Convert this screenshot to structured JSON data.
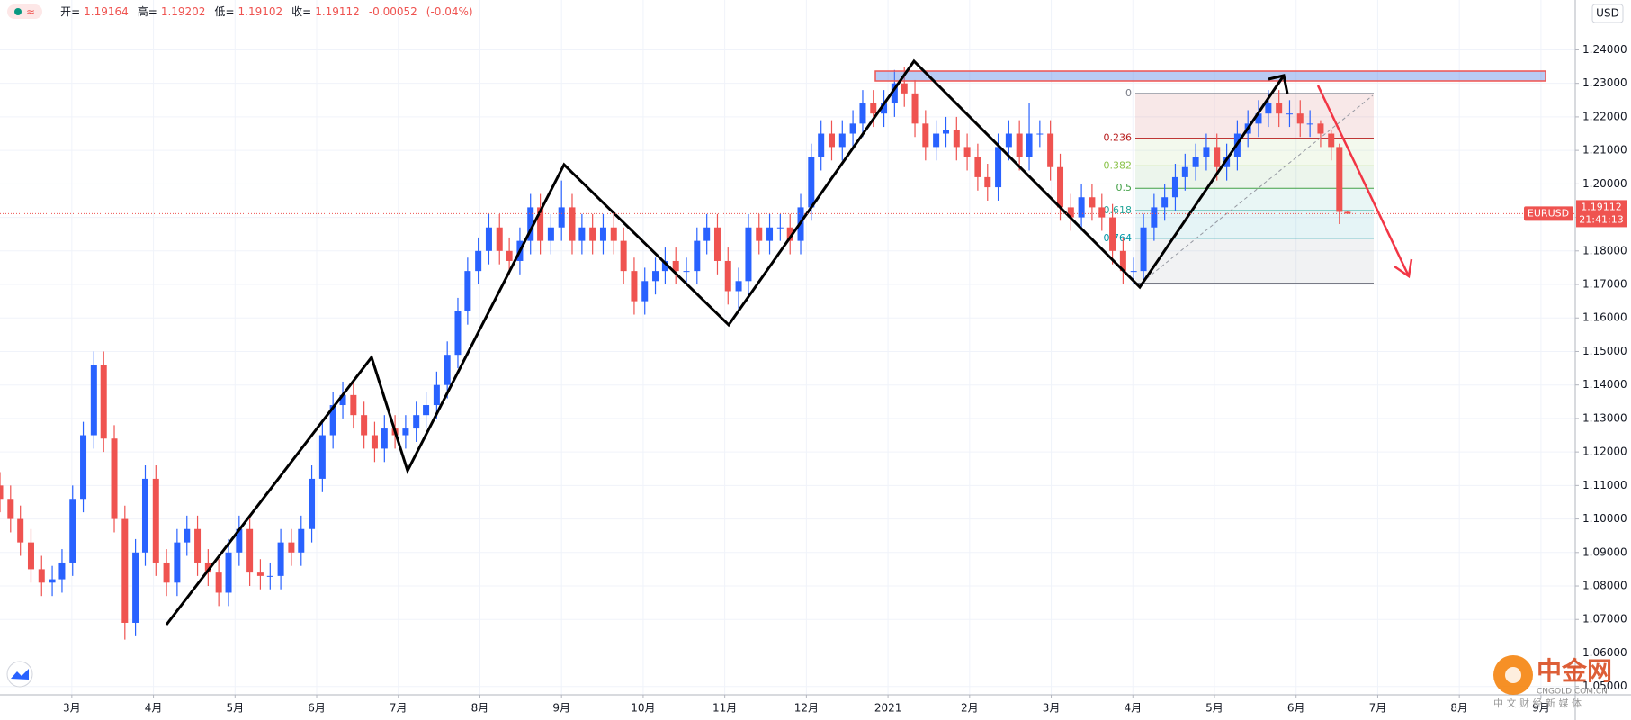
{
  "chart_data": {
    "type": "candlestick",
    "symbol": "EURUSD",
    "currency": "USD",
    "countdown": "21:41:13",
    "header": {
      "indicator": "≈",
      "open_label": "开=",
      "high_label": "高=",
      "low_label": "低=",
      "close_label": "收=",
      "change": -0.00052,
      "change_label": "(-0.04%)"
    },
    "up_color": "#2962ff",
    "down_color": "#ef5350",
    "grid": true,
    "x": [
      2.12,
      2.25,
      2.37,
      2.5,
      2.63,
      2.76,
      2.88,
      3.01,
      3.14,
      3.27,
      3.39,
      3.52,
      3.65,
      3.78,
      3.9,
      4.03,
      4.16,
      4.29,
      4.41,
      4.54,
      4.67,
      4.8,
      4.92,
      5.05,
      5.18,
      5.31,
      5.43,
      5.56,
      5.69,
      5.81,
      5.94,
      6.07,
      6.2,
      6.32,
      6.45,
      6.58,
      6.71,
      6.83,
      6.96,
      7.09,
      7.22,
      7.34,
      7.47,
      7.6,
      7.73,
      7.85,
      7.98,
      8.11,
      8.24,
      8.36,
      8.49,
      8.62,
      8.74,
      8.87,
      9.0,
      9.13,
      9.25,
      9.38,
      9.51,
      9.64,
      9.76,
      9.89,
      10.02,
      10.15,
      10.27,
      10.4,
      10.53,
      10.66,
      10.78,
      10.91,
      11.04,
      11.17,
      11.29,
      11.42,
      11.55,
      11.68,
      11.8,
      11.93,
      12.06,
      12.18,
      12.31,
      12.44,
      12.57,
      12.69,
      12.82,
      12.95,
      13.08,
      13.2,
      13.33,
      13.46,
      13.59,
      13.71,
      13.84,
      13.97,
      14.1,
      14.22,
      14.35,
      14.48,
      14.61,
      14.73,
      14.86,
      14.99,
      15.11,
      15.24,
      15.37,
      15.5,
      15.62,
      15.75,
      15.88,
      16.01,
      16.13,
      16.26,
      16.39,
      16.52,
      16.64,
      16.77,
      16.9,
      17.03,
      17.15,
      17.28,
      17.41,
      17.54,
      17.66,
      17.79,
      17.92,
      18.05,
      18.17,
      18.3,
      18.43,
      18.53,
      18.63
    ],
    "open": [
      1.11,
      1.106,
      1.1,
      1.093,
      1.085,
      1.081,
      1.082,
      1.087,
      1.106,
      1.125,
      1.146,
      1.124,
      1.1,
      1.069,
      1.09,
      1.112,
      1.087,
      1.081,
      1.093,
      1.097,
      1.087,
      1.084,
      1.078,
      1.09,
      1.097,
      1.084,
      1.083,
      1.083,
      1.093,
      1.09,
      1.097,
      1.112,
      1.125,
      1.134,
      1.137,
      1.131,
      1.125,
      1.121,
      1.127,
      1.125,
      1.127,
      1.131,
      1.134,
      1.14,
      1.149,
      1.162,
      1.174,
      1.18,
      1.187,
      1.18,
      1.177,
      1.183,
      1.193,
      1.183,
      1.187,
      1.193,
      1.183,
      1.187,
      1.183,
      1.187,
      1.183,
      1.174,
      1.165,
      1.171,
      1.174,
      1.177,
      1.174,
      1.174,
      1.183,
      1.187,
      1.177,
      1.168,
      1.171,
      1.187,
      1.183,
      1.187,
      1.187,
      1.183,
      1.193,
      1.208,
      1.215,
      1.211,
      1.215,
      1.218,
      1.224,
      1.221,
      1.224,
      1.23,
      1.227,
      1.218,
      1.211,
      1.215,
      1.216,
      1.211,
      1.208,
      1.202,
      1.199,
      1.211,
      1.215,
      1.208,
      1.215,
      1.215,
      1.205,
      1.193,
      1.19,
      1.196,
      1.193,
      1.19,
      1.18,
      1.174,
      1.174,
      1.187,
      1.193,
      1.196,
      1.202,
      1.205,
      1.208,
      1.211,
      1.205,
      1.208,
      1.215,
      1.218,
      1.221,
      1.224,
      1.221,
      1.221,
      1.218,
      1.218,
      1.215,
      1.211,
      1.19164
    ],
    "high": [
      1.114,
      1.11,
      1.104,
      1.097,
      1.089,
      1.086,
      1.091,
      1.11,
      1.129,
      1.15,
      1.15,
      1.128,
      1.104,
      1.094,
      1.116,
      1.116,
      1.091,
      1.097,
      1.101,
      1.101,
      1.091,
      1.088,
      1.094,
      1.101,
      1.101,
      1.088,
      1.087,
      1.097,
      1.097,
      1.101,
      1.116,
      1.129,
      1.138,
      1.141,
      1.141,
      1.135,
      1.129,
      1.131,
      1.131,
      1.131,
      1.135,
      1.138,
      1.144,
      1.153,
      1.166,
      1.178,
      1.184,
      1.191,
      1.191,
      1.184,
      1.187,
      1.197,
      1.197,
      1.191,
      1.201,
      1.197,
      1.191,
      1.191,
      1.191,
      1.191,
      1.187,
      1.178,
      1.175,
      1.178,
      1.181,
      1.181,
      1.178,
      1.187,
      1.191,
      1.191,
      1.181,
      1.175,
      1.191,
      1.191,
      1.191,
      1.191,
      1.191,
      1.197,
      1.212,
      1.219,
      1.219,
      1.219,
      1.222,
      1.228,
      1.228,
      1.228,
      1.234,
      1.235,
      1.231,
      1.222,
      1.219,
      1.22,
      1.22,
      1.215,
      1.212,
      1.206,
      1.215,
      1.219,
      1.219,
      1.224,
      1.219,
      1.219,
      1.209,
      1.197,
      1.2,
      1.2,
      1.197,
      1.194,
      1.184,
      1.178,
      1.191,
      1.197,
      1.2,
      1.206,
      1.209,
      1.212,
      1.215,
      1.215,
      1.212,
      1.219,
      1.222,
      1.225,
      1.228,
      1.228,
      1.225,
      1.225,
      1.222,
      1.219,
      1.216,
      1.212,
      1.19202
    ],
    "low": [
      1.102,
      1.096,
      1.089,
      1.081,
      1.077,
      1.077,
      1.078,
      1.083,
      1.102,
      1.121,
      1.12,
      1.096,
      1.064,
      1.065,
      1.086,
      1.083,
      1.077,
      1.077,
      1.089,
      1.083,
      1.08,
      1.074,
      1.074,
      1.086,
      1.08,
      1.079,
      1.079,
      1.079,
      1.086,
      1.086,
      1.093,
      1.108,
      1.121,
      1.13,
      1.127,
      1.121,
      1.117,
      1.117,
      1.121,
      1.121,
      1.123,
      1.127,
      1.13,
      1.136,
      1.145,
      1.158,
      1.17,
      1.176,
      1.176,
      1.173,
      1.173,
      1.179,
      1.179,
      1.179,
      1.183,
      1.179,
      1.179,
      1.179,
      1.179,
      1.179,
      1.17,
      1.161,
      1.161,
      1.167,
      1.17,
      1.17,
      1.17,
      1.17,
      1.179,
      1.173,
      1.164,
      1.162,
      1.167,
      1.179,
      1.179,
      1.183,
      1.179,
      1.179,
      1.189,
      1.204,
      1.207,
      1.207,
      1.211,
      1.214,
      1.217,
      1.217,
      1.22,
      1.223,
      1.214,
      1.207,
      1.207,
      1.211,
      1.207,
      1.204,
      1.198,
      1.195,
      1.195,
      1.207,
      1.204,
      1.204,
      1.211,
      1.201,
      1.189,
      1.186,
      1.186,
      1.189,
      1.186,
      1.176,
      1.17,
      1.17,
      1.17,
      1.183,
      1.189,
      1.192,
      1.198,
      1.201,
      1.204,
      1.201,
      1.201,
      1.204,
      1.211,
      1.214,
      1.217,
      1.217,
      1.217,
      1.214,
      1.214,
      1.211,
      1.207,
      1.188,
      1.19102
    ],
    "close": [
      1.106,
      1.1,
      1.093,
      1.085,
      1.081,
      1.082,
      1.087,
      1.106,
      1.125,
      1.146,
      1.124,
      1.1,
      1.069,
      1.09,
      1.112,
      1.087,
      1.081,
      1.093,
      1.097,
      1.087,
      1.084,
      1.078,
      1.09,
      1.097,
      1.084,
      1.083,
      1.083,
      1.093,
      1.09,
      1.097,
      1.112,
      1.125,
      1.134,
      1.137,
      1.131,
      1.125,
      1.121,
      1.127,
      1.125,
      1.127,
      1.131,
      1.134,
      1.14,
      1.149,
      1.162,
      1.174,
      1.18,
      1.187,
      1.18,
      1.177,
      1.183,
      1.193,
      1.183,
      1.187,
      1.193,
      1.183,
      1.187,
      1.183,
      1.187,
      1.183,
      1.174,
      1.165,
      1.171,
      1.174,
      1.177,
      1.174,
      1.174,
      1.183,
      1.187,
      1.177,
      1.168,
      1.171,
      1.187,
      1.183,
      1.187,
      1.187,
      1.183,
      1.193,
      1.208,
      1.215,
      1.211,
      1.215,
      1.218,
      1.224,
      1.221,
      1.224,
      1.23,
      1.227,
      1.218,
      1.211,
      1.215,
      1.216,
      1.211,
      1.208,
      1.202,
      1.199,
      1.211,
      1.215,
      1.208,
      1.215,
      1.215,
      1.205,
      1.193,
      1.19,
      1.196,
      1.193,
      1.19,
      1.18,
      1.174,
      1.174,
      1.187,
      1.193,
      1.196,
      1.202,
      1.205,
      1.208,
      1.211,
      1.205,
      1.208,
      1.215,
      1.218,
      1.221,
      1.224,
      1.221,
      1.221,
      1.218,
      1.218,
      1.215,
      1.211,
      1.19164,
      1.19112
    ],
    "xlim": [
      2.12,
      21.42
    ],
    "xticks": [
      {
        "value": 3,
        "label": "3月"
      },
      {
        "value": 4,
        "label": "4月"
      },
      {
        "value": 5,
        "label": "5月"
      },
      {
        "value": 6,
        "label": "6月"
      },
      {
        "value": 7,
        "label": "7月"
      },
      {
        "value": 8,
        "label": "8月"
      },
      {
        "value": 9,
        "label": "9月"
      },
      {
        "value": 10,
        "label": "10月"
      },
      {
        "value": 11,
        "label": "11月"
      },
      {
        "value": 12,
        "label": "12月"
      },
      {
        "value": 13,
        "label": "2021"
      },
      {
        "value": 14,
        "label": "2月"
      },
      {
        "value": 15,
        "label": "3月"
      },
      {
        "value": 16,
        "label": "4月"
      },
      {
        "value": 17,
        "label": "5月"
      },
      {
        "value": 18,
        "label": "6月"
      },
      {
        "value": 19,
        "label": "7月"
      },
      {
        "value": 20,
        "label": "8月"
      },
      {
        "value": 21,
        "label": "9月"
      }
    ],
    "ylim": [
      1.0475,
      1.2549
    ],
    "yticks": [
      {
        "value": 1.05,
        "label": "1.05000"
      },
      {
        "value": 1.06,
        "label": "1.06000"
      },
      {
        "value": 1.07,
        "label": "1.07000"
      },
      {
        "value": 1.08,
        "label": "1.08000"
      },
      {
        "value": 1.09,
        "label": "1.09000"
      },
      {
        "value": 1.1,
        "label": "1.10000"
      },
      {
        "value": 1.11,
        "label": "1.11000"
      },
      {
        "value": 1.12,
        "label": "1.12000"
      },
      {
        "value": 1.13,
        "label": "1.13000"
      },
      {
        "value": 1.14,
        "label": "1.14000"
      },
      {
        "value": 1.15,
        "label": "1.15000"
      },
      {
        "value": 1.16,
        "label": "1.16000"
      },
      {
        "value": 1.17,
        "label": "1.17000"
      },
      {
        "value": 1.18,
        "label": "1.18000"
      },
      {
        "value": 1.19,
        "label": "1.19000"
      },
      {
        "value": 1.2,
        "label": "1.20000"
      },
      {
        "value": 1.21,
        "label": "1.21000"
      },
      {
        "value": 1.22,
        "label": "1.22000"
      },
      {
        "value": 1.23,
        "label": "1.23000"
      },
      {
        "value": 1.24,
        "label": "1.24000"
      }
    ],
    "fib": {
      "high": 1.227,
      "low": 1.1704,
      "levels": [
        0,
        0.236,
        0.382,
        0.5,
        0.618,
        0.764
      ],
      "colors": [
        "#787b86",
        "#b71c1c",
        "#8bc34a",
        "#43a047",
        "#26a69a",
        "#0097a7"
      ]
    },
    "watermark": {
      "name": "中金网",
      "url": "CNGOLD.COM.CN",
      "tagline": "中 文 财 经 新 媒 体"
    }
  }
}
